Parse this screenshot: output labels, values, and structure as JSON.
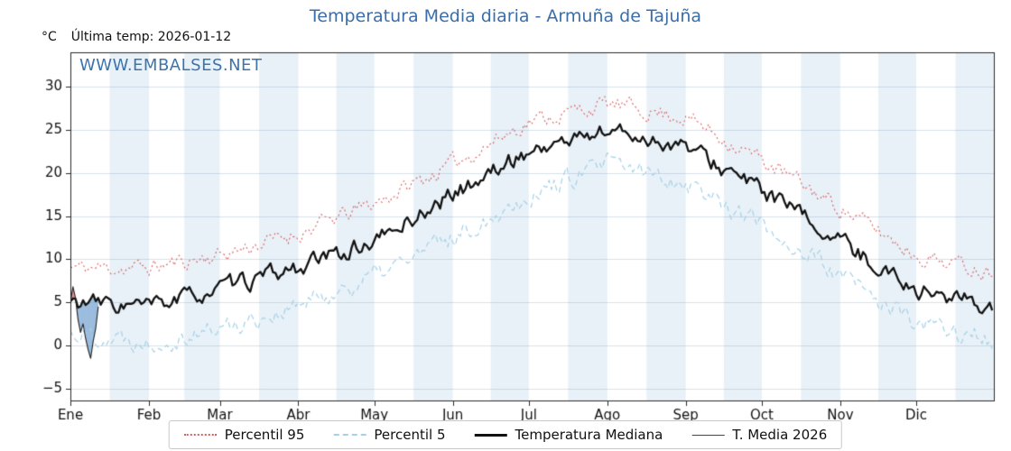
{
  "title": "Temperatura Media diaria - Armuña de Tajuña",
  "y_axis_unit": "°C",
  "last_temp_label": "Última temp: 2026-01-12",
  "watermark": "WWW.EMBALSES.NET",
  "colors": {
    "title": "#3a6da9",
    "watermark": "#3d74ad",
    "frame": "#2a2a2a",
    "band": "#e8f1f8",
    "grid": "rgba(140,165,190,0.35)",
    "p95": "#d95f5f",
    "p5": "#a6d1e6",
    "median": "#111111",
    "t2026": "#222222"
  },
  "legend": [
    {
      "label": "Percentil 95",
      "style": "dotted",
      "color": "#d95f5f",
      "width": 2
    },
    {
      "label": "Percentil 5",
      "style": "dashed",
      "color": "#a6d1e6",
      "width": 2
    },
    {
      "label": "Temperatura Mediana",
      "style": "solid",
      "color": "#111111",
      "width": 3
    },
    {
      "label": "T. Media 2026",
      "style": "solid",
      "color": "#444444",
      "width": 1
    }
  ],
  "chart_data": {
    "type": "line",
    "title": "Temperatura Media diaria - Armuña de Tajuña",
    "xlabel": "",
    "ylabel": "°C",
    "x_tick_labels": [
      "Ene",
      "Feb",
      "Mar",
      "Abr",
      "May",
      "Jun",
      "Jul",
      "Ago",
      "Sep",
      "Oct",
      "Nov",
      "Dic"
    ],
    "month_start_days": [
      0,
      31,
      59,
      90,
      120,
      151,
      181,
      212,
      243,
      273,
      304,
      334,
      365
    ],
    "y_ticks": [
      -5,
      0,
      5,
      10,
      15,
      20,
      25,
      30
    ],
    "ylim": [
      -6.5,
      34
    ],
    "grid": true,
    "legend_position": "bottom",
    "series": [
      {
        "name": "Percentil 95",
        "kind": "anchors",
        "values_at_month_starts": [
          9.0,
          9.0,
          10.5,
          13.0,
          16.5,
          21.0,
          26.0,
          28.0,
          26.5,
          21.5,
          16.0,
          10.5,
          8.5
        ],
        "noise": 1.0,
        "seed": 11
      },
      {
        "name": "Percentil 5",
        "kind": "anchors",
        "values_at_month_starts": [
          1.5,
          0.5,
          2.0,
          4.5,
          8.0,
          12.5,
          17.5,
          21.0,
          19.0,
          14.0,
          8.0,
          2.5,
          0.5
        ],
        "noise": 1.2,
        "seed": 22
      },
      {
        "name": "Temperatura Mediana",
        "kind": "anchors",
        "values_at_month_starts": [
          5.0,
          4.5,
          6.5,
          9.0,
          12.0,
          17.5,
          22.5,
          25.0,
          23.0,
          18.0,
          12.0,
          6.5,
          4.5
        ],
        "noise": 1.0,
        "seed": 33
      },
      {
        "name": "T. Media 2026",
        "kind": "daily",
        "start_day": 0,
        "values": [
          5.0,
          6.8,
          5.5,
          3.0,
          1.5,
          2.5,
          0.8,
          -0.5,
          -1.5,
          0.5,
          2.0,
          4.5
        ]
      }
    ],
    "fill_above_color": "rgba(200,70,70,0.75)",
    "fill_below_color": "rgba(100,150,205,0.85)"
  }
}
